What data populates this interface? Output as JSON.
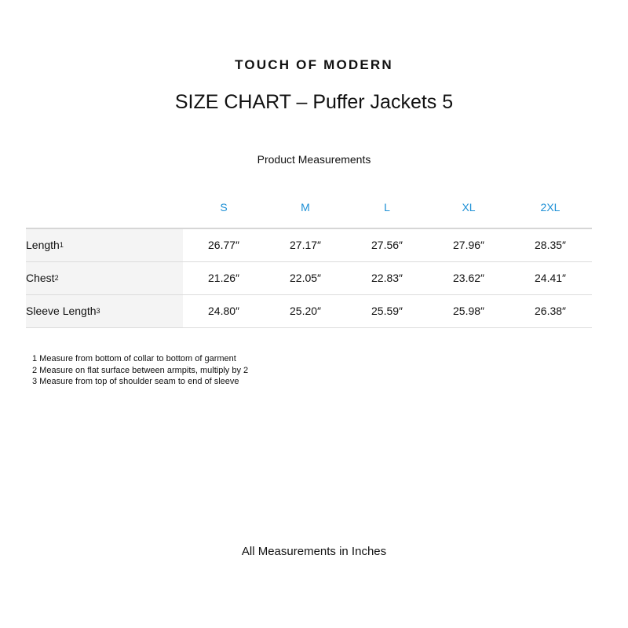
{
  "brand": "TOUCH OF MODERN",
  "title": "SIZE CHART – Puffer Jackets 5",
  "subtitle": "Product Measurements",
  "header_color": "#1e90d6",
  "sizes": [
    "S",
    "M",
    "L",
    "XL",
    "2XL"
  ],
  "rows": [
    {
      "label": "Length",
      "sup": "1",
      "values": [
        "26.77″",
        "27.17″",
        "27.56″",
        "27.96″",
        "28.35″"
      ]
    },
    {
      "label": "Chest",
      "sup": "2",
      "values": [
        "21.26″",
        "22.05″",
        "22.83″",
        "23.62″",
        "24.41″"
      ]
    },
    {
      "label": "Sleeve Length",
      "sup": "3",
      "values": [
        "24.80″",
        "25.20″",
        "25.59″",
        "25.98″",
        "26.38″"
      ]
    }
  ],
  "notes": [
    "1 Measure from bottom of collar to bottom of garment",
    "2 Measure on flat surface between armpits, multiply by 2",
    "3 Measure from top of shoulder seam to end of sleeve"
  ],
  "footer": "All Measurements in Inches"
}
